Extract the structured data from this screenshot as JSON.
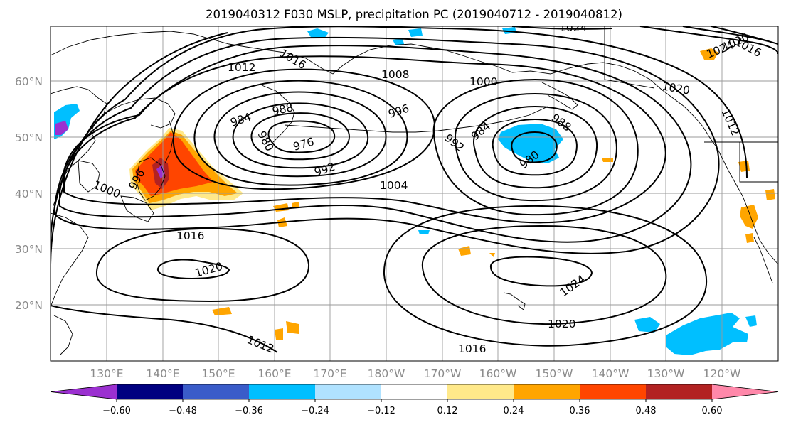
{
  "title": "2019040312 F030 MSLP, precipitation PC (2019040712 - 2019040812)",
  "map": {
    "lat_labels": [
      "60°N",
      "50°N",
      "40°N",
      "30°N",
      "20°N"
    ],
    "lon_labels": [
      "130°E",
      "140°E",
      "150°E",
      "160°E",
      "170°E",
      "180°W",
      "170°W",
      "160°W",
      "150°W",
      "140°W",
      "130°W",
      "120°W"
    ],
    "isobar_labels": {
      "l1024_top": "1024",
      "l1016_ne": "1016",
      "l1020_ne": "1020",
      "l1024_ne": "1024",
      "l1012_nw": "1012",
      "l1016_nw": "1016",
      "l1008": "1008",
      "l1000_n": "1000",
      "l1020_na": "1020",
      "l996_c": "996",
      "l984_w": "984",
      "l988_w": "988",
      "l980_w": "980",
      "l976": "976",
      "l984_e": "984",
      "l988_e": "988",
      "l992_e": "992",
      "l980_e": "980",
      "l1012_e": "1012",
      "l992_w": "992",
      "l996_w": "996",
      "l1000_w": "1000",
      "l1004": "1004",
      "l1016_c": "1016",
      "l1020_sw": "1020",
      "l1024_se": "1024",
      "l1020_s": "1020",
      "l1012_s": "1012",
      "l1016_s": "1016"
    }
  },
  "colorbar": {
    "ticks": [
      "−0.60",
      "−0.48",
      "−0.36",
      "−0.24",
      "−0.12",
      "0.12",
      "0.24",
      "0.36",
      "0.48",
      "0.60"
    ],
    "colors": [
      "#9b30d0",
      "#000080",
      "#3a5cc9",
      "#00bfff",
      "#b0e2ff",
      "#ffffff",
      "#ffe98a",
      "#ffa500",
      "#ff4500",
      "#b22222",
      "#ff88aa"
    ]
  },
  "colors": {
    "neg_light": "#00bfff",
    "pos_light": "#ffe98a",
    "pos_mid": "#ffa500",
    "pos_strong": "#ff4500",
    "pos_dark": "#b22222",
    "neg_dark": "#9b30d0"
  }
}
